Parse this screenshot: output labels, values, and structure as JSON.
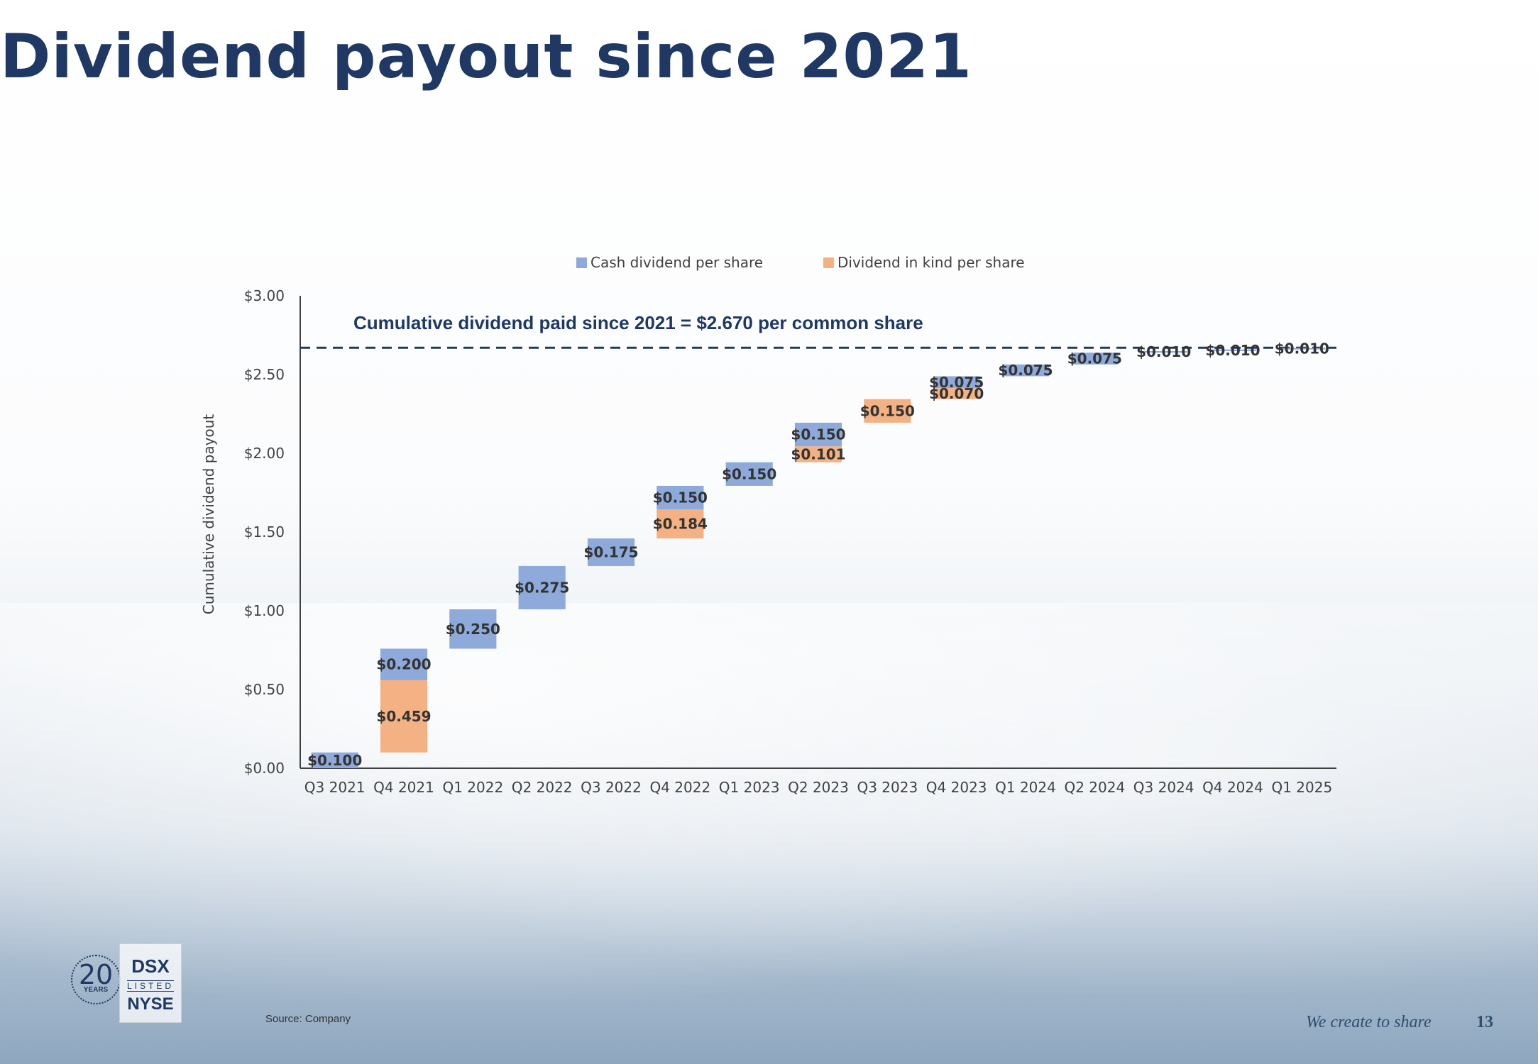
{
  "page": {
    "title": "Dividend payout since 2021",
    "source": "Source: Company",
    "tagline": "We create to share",
    "page_number": "13",
    "logo": {
      "number": "20",
      "years": "YEARS",
      "dsx": "DSX",
      "listed": "LISTED",
      "nyse": "NYSE"
    }
  },
  "colors": {
    "title": "#1f3864",
    "cash": "#8eaadb",
    "in_kind": "#f4b183",
    "dashed_line": "#1f3864"
  },
  "chart_data": {
    "type": "bar",
    "subtype": "stacked waterfall",
    "ylabel": "Cumulative dividend payout",
    "ylim": [
      0,
      3.0
    ],
    "yticks": [
      0,
      0.5,
      1.0,
      1.5,
      2.0,
      2.5,
      3.0
    ],
    "ytick_labels": [
      "$0.00",
      "$0.50",
      "$1.00",
      "$1.50",
      "$2.00",
      "$2.50",
      "$3.00"
    ],
    "legend_position": "top",
    "categories": [
      "Q3 2021",
      "Q4 2021",
      "Q1 2022",
      "Q2 2022",
      "Q3 2022",
      "Q4 2022",
      "Q1 2023",
      "Q2 2023",
      "Q3 2023",
      "Q4 2023",
      "Q1 2024",
      "Q2 2024",
      "Q3 2024",
      "Q4 2024",
      "Q1 2025"
    ],
    "series": [
      {
        "name": "Cash dividend per share",
        "color": "#8eaadb",
        "values": [
          0.1,
          0.2,
          0.25,
          0.275,
          0.175,
          0.15,
          0.15,
          0.15,
          0,
          0.075,
          0.075,
          0.075,
          0.01,
          0.01,
          0.01
        ],
        "labels": [
          "$0.100",
          "$0.200",
          "$0.250",
          "$0.275",
          "$0.175",
          "$0.150",
          "$0.150",
          "$0.150",
          "",
          "$0.075",
          "$0.075",
          "$0.075",
          "$0.010",
          "$0.010",
          "$0.010"
        ]
      },
      {
        "name": "Dividend in kind per share",
        "color": "#f4b183",
        "values": [
          0,
          0.459,
          0,
          0,
          0,
          0.184,
          0,
          0.101,
          0.15,
          0.07,
          0,
          0,
          0,
          0,
          0
        ],
        "labels": [
          "",
          "$0.459",
          "",
          "",
          "",
          "$0.184",
          "",
          "$0.101",
          "$0.150",
          "$0.070",
          "",
          "",
          "",
          "",
          ""
        ]
      }
    ],
    "stack_order": [
      "Dividend in kind per share",
      "Cash dividend per share"
    ],
    "reference_line": {
      "value": 2.67,
      "style": "dashed",
      "label": "Cumulative dividend paid since 2021 = $2.670 per common share"
    }
  }
}
